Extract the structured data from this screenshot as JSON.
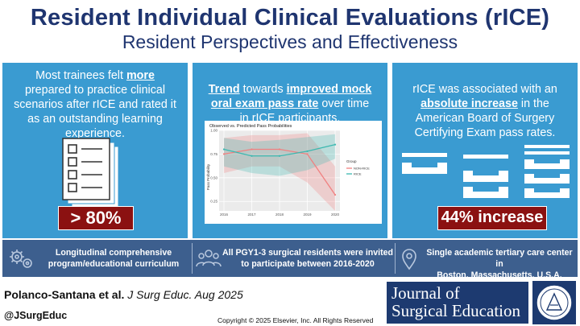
{
  "header": {
    "title": "Resident Individual Clinical Evaluations (rICE)",
    "subtitle": "Resident Perspectives and Effectiveness"
  },
  "panel_left": {
    "line1_pre": "Most trainees felt ",
    "line1_em": "more",
    "line2": "prepared to practice clinical",
    "line3": "scenarios after rICE and rated it",
    "line4": "as an outstanding learning",
    "line5": "experience.",
    "stat": "> 80%",
    "icon": "checklist-icon"
  },
  "panel_middle": {
    "em1": "Trend",
    "text1": " towards ",
    "em2": "improved mock",
    "em3": "oral exam pass rate",
    "text2": " over time",
    "text3": "in rICE participants."
  },
  "panel_right": {
    "line1": "rICE was associated with an",
    "line2_em": "absolute increase",
    "line2_post": " in the",
    "line3": "American Board of Surgery",
    "line4": "Certifying Exam pass rates.",
    "stat": "44% increase",
    "icon": "inbox-trays-icon"
  },
  "chart_data": {
    "type": "line",
    "title": "Observed vs. Predicted Pass Probabilities",
    "xlabel": "",
    "ylabel": "Pass Probability",
    "x": [
      "2016",
      "2017",
      "2018",
      "2019",
      "2020"
    ],
    "ylim": [
      0.15,
      1.0
    ],
    "yticks": [
      "0.25",
      "0.50",
      "0.75",
      "1.00"
    ],
    "legend_title": "Group",
    "legend_position": "right",
    "series": [
      {
        "name": "NON-RICE",
        "color": "#f08080",
        "values": [
          0.75,
          0.8,
          0.8,
          0.75,
          0.32
        ],
        "lower": [
          0.55,
          0.62,
          0.62,
          0.45,
          0.15
        ],
        "upper": [
          0.92,
          0.95,
          0.95,
          0.97,
          0.62
        ]
      },
      {
        "name": "RICE",
        "color": "#3cb8b0",
        "values": [
          0.8,
          0.73,
          0.73,
          0.78,
          0.85
        ],
        "lower": [
          0.62,
          0.55,
          0.52,
          0.58,
          0.7
        ],
        "upper": [
          0.92,
          0.88,
          0.9,
          0.93,
          0.96
        ]
      }
    ]
  },
  "bottom": {
    "item1_line1": "Longitudinal comprehensive",
    "item1_line2": "program/educational curriculum",
    "item2_line1": "All PGY1-3 surgical residents were invited",
    "item2_line2": "to participate between 2016-2020",
    "item3_line1": "Single academic tertiary care center in",
    "item3_line2": "Boston, Massachusetts, U.S.A."
  },
  "footer": {
    "authors": "Polanco-Santana et al.",
    "journal_ref": " J Surg Educ. Aug 2025",
    "handle": "@JSurgEduc",
    "copyright": "Copyright © 2025 Elsevier, Inc. All Rights Reserved",
    "journal_line1": "Journal of",
    "journal_line2": "Surgical Education",
    "colors": {
      "navy": "#1f3570",
      "panel": "#3a9bd1",
      "badge": "#8b1111",
      "bar": "#3d5f8e"
    }
  }
}
